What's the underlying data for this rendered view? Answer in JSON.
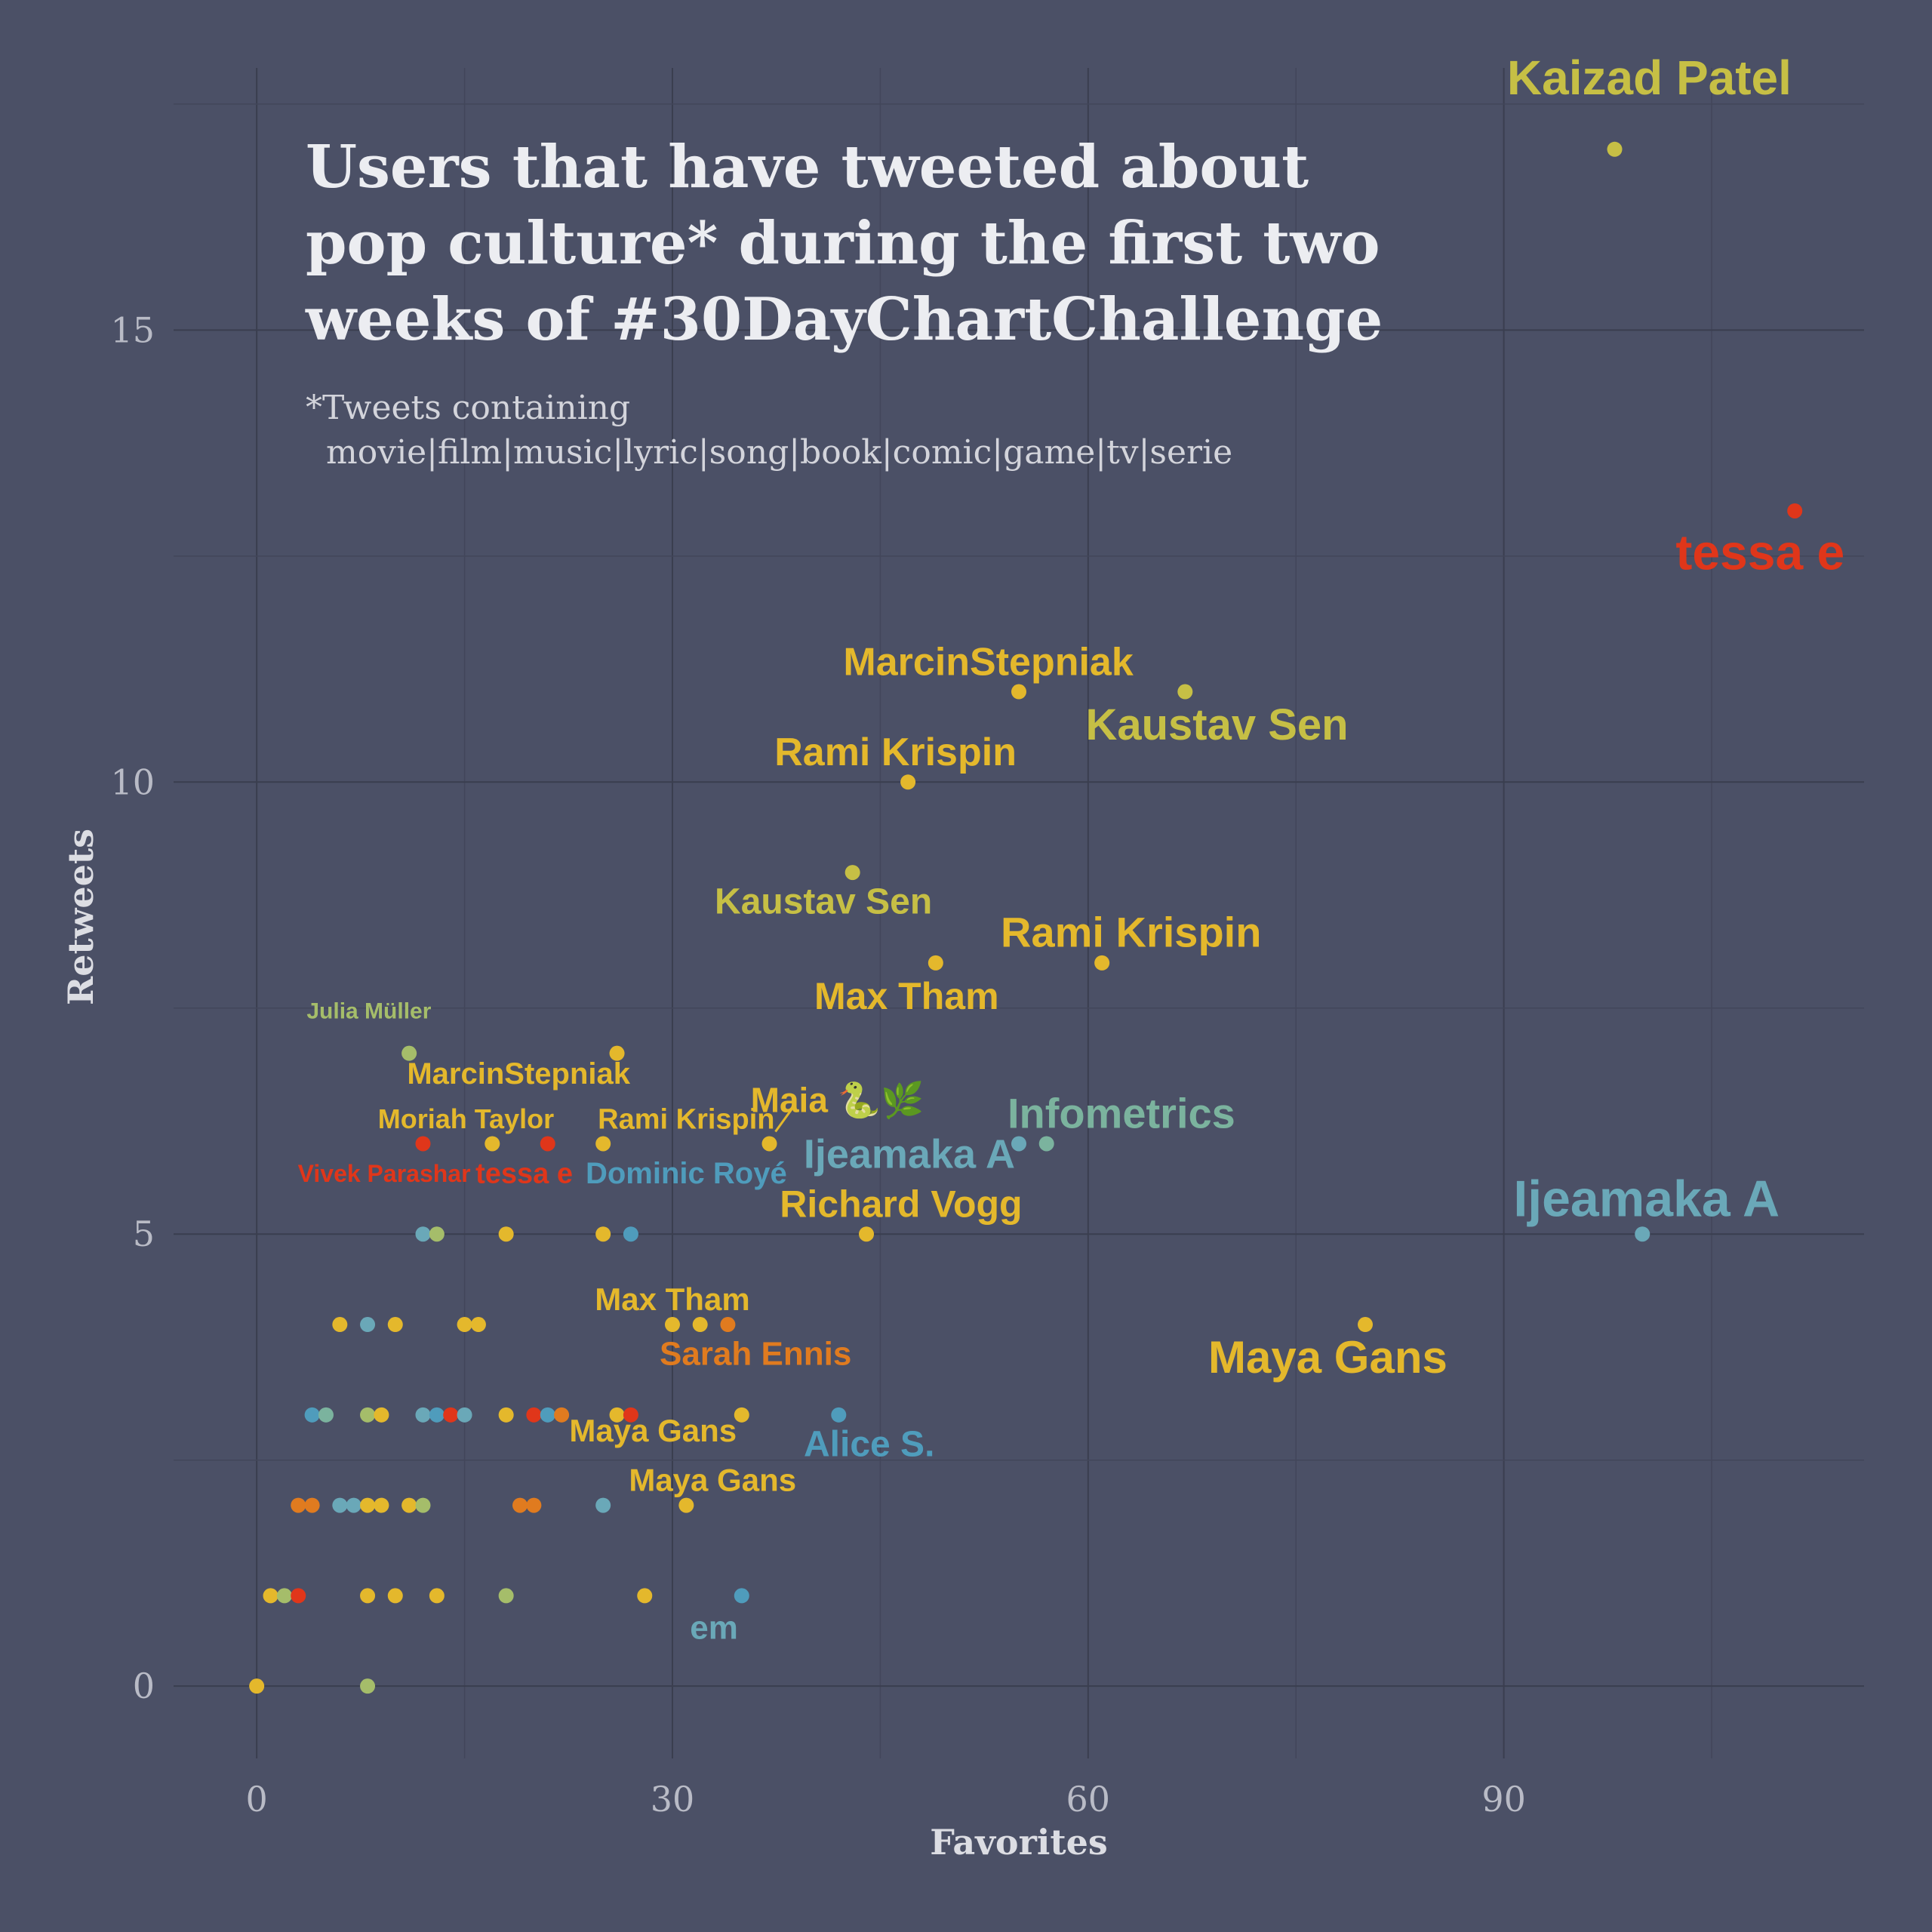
{
  "chart_data": {
    "type": "scatter",
    "title_lines": [
      "Users that have tweeted about",
      "pop culture* during the first two",
      "weeks of #30DayChartChallenge"
    ],
    "subtitle_lines": [
      "*Tweets containing",
      "movie|film|music|lyric|song|book|comic|game|tv|serie"
    ],
    "xlabel": "Favorites",
    "ylabel": "Retweets",
    "xlim": [
      -6,
      116
    ],
    "ylim": [
      -0.8,
      17.9
    ],
    "xticks": [
      0,
      30,
      60,
      90
    ],
    "yticks": [
      0,
      5,
      10,
      15
    ],
    "grid": true,
    "legend": "none",
    "colors": {
      "background": "#4b5066",
      "yellow": "#e4b82c",
      "olive": "#c6bf45",
      "sage": "#a5bd6a",
      "orange": "#e07b1f",
      "red": "#e0361a",
      "teal": "#6aa8b8",
      "blue": "#4f9cbc",
      "mint": "#7bb39e"
    },
    "points": [
      {
        "x": 98,
        "y": 17,
        "c": "olive"
      },
      {
        "x": 111,
        "y": 13,
        "c": "red"
      },
      {
        "x": 55,
        "y": 11,
        "c": "yellow"
      },
      {
        "x": 67,
        "y": 11,
        "c": "olive"
      },
      {
        "x": 47,
        "y": 10,
        "c": "yellow"
      },
      {
        "x": 43,
        "y": 9,
        "c": "olive"
      },
      {
        "x": 49,
        "y": 8,
        "c": "yellow"
      },
      {
        "x": 61,
        "y": 8,
        "c": "yellow"
      },
      {
        "x": 11,
        "y": 7,
        "c": "sage"
      },
      {
        "x": 26,
        "y": 7,
        "c": "yellow"
      },
      {
        "x": 12,
        "y": 6,
        "c": "red"
      },
      {
        "x": 17,
        "y": 6,
        "c": "yellow"
      },
      {
        "x": 21,
        "y": 6,
        "c": "red"
      },
      {
        "x": 25,
        "y": 6,
        "c": "yellow"
      },
      {
        "x": 37,
        "y": 6,
        "c": "yellow"
      },
      {
        "x": 55,
        "y": 6,
        "c": "teal"
      },
      {
        "x": 57,
        "y": 6,
        "c": "mint"
      },
      {
        "x": 12,
        "y": 5,
        "c": "teal"
      },
      {
        "x": 13,
        "y": 5,
        "c": "sage"
      },
      {
        "x": 18,
        "y": 5,
        "c": "yellow"
      },
      {
        "x": 25,
        "y": 5,
        "c": "yellow"
      },
      {
        "x": 27,
        "y": 5,
        "c": "blue"
      },
      {
        "x": 44,
        "y": 5,
        "c": "yellow"
      },
      {
        "x": 100,
        "y": 5,
        "c": "teal"
      },
      {
        "x": 6,
        "y": 4,
        "c": "yellow"
      },
      {
        "x": 8,
        "y": 4,
        "c": "teal"
      },
      {
        "x": 10,
        "y": 4,
        "c": "yellow"
      },
      {
        "x": 15,
        "y": 4,
        "c": "yellow"
      },
      {
        "x": 16,
        "y": 4,
        "c": "yellow"
      },
      {
        "x": 30,
        "y": 4,
        "c": "yellow"
      },
      {
        "x": 32,
        "y": 4,
        "c": "yellow"
      },
      {
        "x": 34,
        "y": 4,
        "c": "orange"
      },
      {
        "x": 80,
        "y": 4,
        "c": "yellow"
      },
      {
        "x": 4,
        "y": 3,
        "c": "blue"
      },
      {
        "x": 5,
        "y": 3,
        "c": "mint"
      },
      {
        "x": 8,
        "y": 3,
        "c": "sage"
      },
      {
        "x": 9,
        "y": 3,
        "c": "yellow"
      },
      {
        "x": 12,
        "y": 3,
        "c": "teal"
      },
      {
        "x": 13,
        "y": 3,
        "c": "blue"
      },
      {
        "x": 14,
        "y": 3,
        "c": "red"
      },
      {
        "x": 15,
        "y": 3,
        "c": "teal"
      },
      {
        "x": 18,
        "y": 3,
        "c": "yellow"
      },
      {
        "x": 20,
        "y": 3,
        "c": "red"
      },
      {
        "x": 21,
        "y": 3,
        "c": "blue"
      },
      {
        "x": 22,
        "y": 3,
        "c": "orange"
      },
      {
        "x": 26,
        "y": 3,
        "c": "yellow"
      },
      {
        "x": 27,
        "y": 3,
        "c": "red"
      },
      {
        "x": 35,
        "y": 3,
        "c": "yellow"
      },
      {
        "x": 42,
        "y": 3,
        "c": "blue"
      },
      {
        "x": 3,
        "y": 2,
        "c": "orange"
      },
      {
        "x": 4,
        "y": 2,
        "c": "orange"
      },
      {
        "x": 6,
        "y": 2,
        "c": "teal"
      },
      {
        "x": 7,
        "y": 2,
        "c": "teal"
      },
      {
        "x": 8,
        "y": 2,
        "c": "yellow"
      },
      {
        "x": 9,
        "y": 2,
        "c": "yellow"
      },
      {
        "x": 11,
        "y": 2,
        "c": "yellow"
      },
      {
        "x": 12,
        "y": 2,
        "c": "sage"
      },
      {
        "x": 19,
        "y": 2,
        "c": "orange"
      },
      {
        "x": 20,
        "y": 2,
        "c": "orange"
      },
      {
        "x": 25,
        "y": 2,
        "c": "teal"
      },
      {
        "x": 31,
        "y": 2,
        "c": "yellow"
      },
      {
        "x": 1,
        "y": 1,
        "c": "yellow"
      },
      {
        "x": 2,
        "y": 1,
        "c": "sage"
      },
      {
        "x": 3,
        "y": 1,
        "c": "red"
      },
      {
        "x": 8,
        "y": 1,
        "c": "yellow"
      },
      {
        "x": 10,
        "y": 1,
        "c": "yellow"
      },
      {
        "x": 13,
        "y": 1,
        "c": "yellow"
      },
      {
        "x": 18,
        "y": 1,
        "c": "sage"
      },
      {
        "x": 28,
        "y": 1,
        "c": "yellow"
      },
      {
        "x": 35,
        "y": 1,
        "c": "blue"
      },
      {
        "x": 0,
        "y": 0,
        "c": "yellow"
      },
      {
        "x": 8,
        "y": 0,
        "c": "sage"
      }
    ],
    "labels": [
      {
        "text": "Kaizad Patel",
        "x": 100.5,
        "y": 17.75,
        "c": "olive",
        "s": 64
      },
      {
        "text": "tessa e",
        "x": 108.5,
        "y": 12.5,
        "c": "red",
        "s": 66
      },
      {
        "text": "MarcinStepniak",
        "x": 52.8,
        "y": 11.3,
        "c": "yellow",
        "s": 52
      },
      {
        "text": "Kaustav Sen",
        "x": 69.3,
        "y": 10.6,
        "c": "olive",
        "s": 58
      },
      {
        "text": "Rami Krispin",
        "x": 46.1,
        "y": 10.3,
        "c": "yellow",
        "s": 52
      },
      {
        "text": "Kaustav Sen",
        "x": 40.9,
        "y": 8.65,
        "c": "olive",
        "s": 48
      },
      {
        "text": "Rami Krispin",
        "x": 63.1,
        "y": 8.3,
        "c": "yellow",
        "s": 56
      },
      {
        "text": "Max Tham",
        "x": 46.9,
        "y": 7.6,
        "c": "yellow",
        "s": 50
      },
      {
        "text": "Julia Müller",
        "x": 8.1,
        "y": 7.45,
        "c": "sage",
        "s": 30
      },
      {
        "text": "MarcinStepniak",
        "x": 18.9,
        "y": 6.75,
        "c": "yellow",
        "s": 40
      },
      {
        "text": "Moriah Taylor",
        "x": 15.1,
        "y": 6.25,
        "c": "yellow",
        "s": 36
      },
      {
        "text": "Rami Krispin",
        "x": 31,
        "y": 6.25,
        "c": "yellow",
        "s": 38
      },
      {
        "text": "Maia 🐍🌿",
        "x": 41.9,
        "y": 6.45,
        "c": "yellow",
        "s": 46
      },
      {
        "text": "Infometrics",
        "x": 62.4,
        "y": 6.3,
        "c": "mint",
        "s": 56
      },
      {
        "text": "Ijeamaka A",
        "x": 47.1,
        "y": 5.85,
        "c": "teal",
        "s": 54
      },
      {
        "text": "Vivek Parashar",
        "x": 9.2,
        "y": 5.65,
        "c": "red",
        "s": 32
      },
      {
        "text": "tessa e",
        "x": 19.3,
        "y": 5.65,
        "c": "red",
        "s": 38
      },
      {
        "text": "Dominic Royé",
        "x": 31,
        "y": 5.65,
        "c": "blue",
        "s": 40
      },
      {
        "text": "Ijeamaka A",
        "x": 100.3,
        "y": 5.35,
        "c": "teal",
        "s": 68
      },
      {
        "text": "Richard Vogg",
        "x": 46.5,
        "y": 5.3,
        "c": "yellow",
        "s": 50
      },
      {
        "text": "Max Tham",
        "x": 30,
        "y": 4.25,
        "c": "yellow",
        "s": 42
      },
      {
        "text": "Maya Gans",
        "x": 77.3,
        "y": 3.6,
        "c": "yellow",
        "s": 60
      },
      {
        "text": "Sarah Ennis",
        "x": 36,
        "y": 3.65,
        "c": "orange",
        "s": 44
      },
      {
        "text": "Maya Gans",
        "x": 28.6,
        "y": 2.8,
        "c": "yellow",
        "s": 42
      },
      {
        "text": "Alice S.",
        "x": 44.2,
        "y": 2.65,
        "c": "blue",
        "s": 48
      },
      {
        "text": "Maya Gans",
        "x": 32.9,
        "y": 2.25,
        "c": "yellow",
        "s": 42
      },
      {
        "text": "em",
        "x": 33,
        "y": 0.62,
        "c": "teal",
        "s": 44
      }
    ]
  }
}
